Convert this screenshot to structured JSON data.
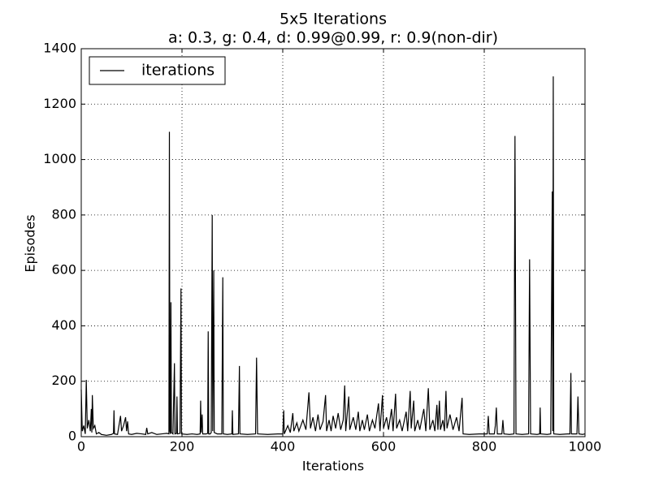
{
  "chart_data": {
    "type": "line",
    "title": "5x5 Iterations",
    "subtitle": "a: 0.3, g: 0.4, d: 0.99@0.99, r: 0.9(non-dir)",
    "x_label": "Iterations",
    "y_label": "Episodes",
    "x": [
      0,
      2,
      5,
      8,
      10,
      12,
      15,
      18,
      20,
      21,
      22,
      24,
      27,
      30,
      35,
      40,
      50,
      60,
      64,
      65,
      66,
      72,
      78,
      80,
      84,
      88,
      90,
      92,
      94,
      100,
      110,
      120,
      128,
      130,
      132,
      140,
      150,
      160,
      170,
      174,
      175,
      176,
      177,
      178,
      179,
      182,
      185,
      186,
      189,
      190,
      191,
      196,
      198,
      199,
      210,
      220,
      230,
      236,
      237,
      238,
      240,
      241,
      248,
      251,
      252,
      253,
      256,
      258,
      260,
      261,
      263,
      264,
      270,
      279,
      281,
      282,
      290,
      299,
      300,
      301,
      312,
      314,
      315,
      330,
      346,
      348,
      350,
      370,
      390,
      400,
      402,
      403,
      410,
      415,
      420,
      422,
      428,
      432,
      440,
      446,
      452,
      455,
      460,
      465,
      470,
      474,
      480,
      485,
      487,
      492,
      496,
      500,
      505,
      510,
      515,
      520,
      523,
      525,
      531,
      533,
      540,
      545,
      550,
      553,
      558,
      562,
      568,
      572,
      578,
      583,
      590,
      593,
      598,
      600,
      606,
      610,
      616,
      619,
      624,
      626,
      632,
      637,
      645,
      648,
      653,
      655,
      660,
      662,
      668,
      672,
      680,
      684,
      689,
      692,
      698,
      702,
      706,
      708,
      711,
      713,
      718,
      721,
      724,
      726,
      732,
      738,
      745,
      750,
      756,
      758,
      770,
      790,
      806,
      808,
      810,
      820,
      822,
      824,
      826,
      835,
      837,
      839,
      850,
      859,
      861,
      863,
      875,
      888,
      890,
      892,
      905,
      910,
      911,
      912,
      925,
      932,
      935,
      936,
      937,
      938,
      950,
      965,
      970,
      972,
      973,
      984,
      986,
      988,
      995,
      1000
    ],
    "series": [
      {
        "name": "iterations",
        "color": "#000000",
        "values": [
          170,
          20,
          40,
          10,
          205,
          30,
          60,
          20,
          100,
          15,
          150,
          30,
          40,
          10,
          15,
          8,
          5,
          8,
          12,
          95,
          10,
          8,
          75,
          20,
          40,
          70,
          20,
          55,
          10,
          8,
          12,
          10,
          8,
          32,
          10,
          15,
          8,
          10,
          12,
          10,
          1100,
          20,
          10,
          485,
          15,
          10,
          265,
          10,
          12,
          145,
          10,
          12,
          535,
          10,
          8,
          10,
          8,
          10,
          130,
          15,
          80,
          10,
          10,
          12,
          380,
          10,
          10,
          15,
          800,
          20,
          600,
          15,
          10,
          10,
          575,
          10,
          8,
          10,
          95,
          8,
          10,
          255,
          10,
          8,
          10,
          285,
          10,
          8,
          10,
          10,
          95,
          10,
          40,
          15,
          85,
          20,
          50,
          20,
          60,
          25,
          160,
          30,
          70,
          20,
          80,
          25,
          55,
          150,
          20,
          60,
          20,
          75,
          30,
          85,
          25,
          60,
          185,
          20,
          145,
          25,
          70,
          25,
          90,
          20,
          60,
          25,
          80,
          20,
          60,
          30,
          120,
          20,
          150,
          30,
          70,
          25,
          100,
          20,
          155,
          30,
          60,
          20,
          90,
          20,
          165,
          30,
          130,
          20,
          60,
          25,
          100,
          20,
          175,
          25,
          60,
          20,
          115,
          25,
          130,
          25,
          60,
          20,
          165,
          30,
          80,
          25,
          70,
          20,
          140,
          10,
          8,
          10,
          10,
          75,
          10,
          10,
          40,
          105,
          10,
          10,
          60,
          10,
          8,
          10,
          1085,
          10,
          8,
          10,
          640,
          10,
          8,
          10,
          105,
          10,
          8,
          10,
          885,
          20,
          1300,
          10,
          8,
          10,
          10,
          230,
          10,
          10,
          145,
          10,
          8,
          10
        ]
      }
    ],
    "xlim": [
      0,
      1000
    ],
    "ylim": [
      0,
      1400
    ],
    "xticks": [
      0,
      200,
      400,
      600,
      800,
      1000
    ],
    "yticks": [
      0,
      200,
      400,
      600,
      800,
      1000,
      1200,
      1400
    ],
    "grid": true,
    "legend": "upper left"
  }
}
